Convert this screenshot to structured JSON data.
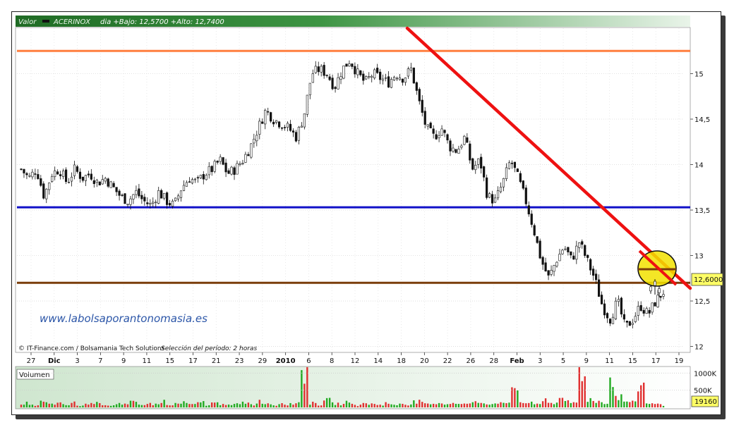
{
  "header": {
    "label": "Valor",
    "ticker": "ACERINOX",
    "quote": "dia +Bajo: 12,5700 +Alto: 12,7400"
  },
  "watermark": "www.labolsaporantonomasia.es",
  "credit": "© IT-Finance.com / Bolsamania Tech Solutions",
  "period_note": "Selección del período: 2 horas",
  "price_box": "12,6000",
  "volume_label": "Volumen",
  "volume_box": "19160",
  "colors": {
    "header_green": "#2e7d32",
    "resistance_orange": "#ff7f3f",
    "support_blue": "#1010c8",
    "support_brown": "#7a3d0a",
    "trendline_red": "#ee1111",
    "highlight_yellow": "#f2e200",
    "price_box_yellow": "#ffff66",
    "candle_green": "#22aa22",
    "candle_dark": "#111111"
  },
  "chart_data": [
    {
      "type": "candlestick",
      "title": "ACERINOX",
      "ylim": [
        11.95,
        15.5
      ],
      "grid": true,
      "y_ticks": [
        "15",
        "14,5",
        "14",
        "13,5",
        "13",
        "12,5",
        "12"
      ],
      "y_tick_values": [
        15,
        14.5,
        14,
        13.5,
        13,
        12.5,
        12
      ],
      "x_tick_labels": [
        "27",
        "Dic",
        "3",
        "7",
        "9",
        "11",
        "15",
        "17",
        "21",
        "23",
        "29",
        "2010",
        "6",
        "8",
        "12",
        "14",
        "18",
        "20",
        "22",
        "26",
        "28",
        "Feb",
        "3",
        "5",
        "9",
        "11",
        "15",
        "17",
        "19"
      ],
      "x_tick_bold": [
        "Dic",
        "2010",
        "Feb"
      ],
      "last_price": 12.6,
      "horizontal_lines": [
        {
          "label": "resistance",
          "value": 15.25,
          "color": "#ff7f3f"
        },
        {
          "label": "support",
          "value": 13.53,
          "color": "#1010c8"
        },
        {
          "label": "support",
          "value": 12.7,
          "color": "#7a3d0a"
        }
      ],
      "trendline": {
        "from": [
          0.0,
          15.5
        ],
        "to": [
          1.0,
          12.48
        ],
        "color": "#ee1111",
        "note": "x as fraction of period (start at 20 Ene)"
      },
      "price_path": [
        13.95,
        13.85,
        13.95,
        13.65,
        13.9,
        13.95,
        13.8,
        13.95,
        13.85,
        13.9,
        13.8,
        13.85,
        13.75,
        13.65,
        13.6,
        13.7,
        13.6,
        13.55,
        13.7,
        13.6,
        13.55,
        13.75,
        13.85,
        13.8,
        13.9,
        13.95,
        14.05,
        13.9,
        13.95,
        14.05,
        14.2,
        14.4,
        14.6,
        14.5,
        14.45,
        14.4,
        14.3,
        14.55,
        15.0,
        15.05,
        15.0,
        14.85,
        15.05,
        15.15,
        15.0,
        14.9,
        15.0,
        14.95,
        14.9,
        15.0,
        14.95,
        15.05,
        14.7,
        14.4,
        14.3,
        14.4,
        14.2,
        14.15,
        14.3,
        13.95,
        14.05,
        13.65,
        13.6,
        13.8,
        14.05,
        13.85,
        13.6,
        13.3,
        12.95,
        12.75,
        12.95,
        13.1,
        12.95,
        13.15,
        12.95,
        12.75,
        12.45,
        12.3,
        12.5,
        12.2,
        12.3,
        12.45,
        12.35,
        12.5,
        12.6
      ]
    },
    {
      "type": "bar",
      "title": "Volumen",
      "y_ticks": [
        "1000K",
        "500K"
      ],
      "ylim": [
        0,
        1150
      ],
      "last_value": 19160,
      "values_k": [
        80,
        120,
        60,
        150,
        90,
        110,
        70,
        130,
        50,
        100,
        160,
        90,
        60,
        120,
        80,
        140,
        70,
        100,
        90,
        180,
        60,
        110,
        130,
        80,
        150,
        70,
        120,
        100,
        60,
        90,
        140,
        80,
        170,
        110,
        60,
        130,
        90,
        150,
        1000,
        120,
        80,
        200,
        110,
        90,
        140,
        60,
        120,
        100,
        80,
        130,
        70,
        110,
        90,
        160,
        120,
        80,
        140,
        100,
        150,
        90,
        120,
        180,
        130,
        110,
        150,
        100,
        600,
        140,
        120,
        90,
        260,
        130,
        200,
        160,
        140,
        1050,
        230,
        180,
        150,
        800,
        300,
        170,
        140,
        650,
        120,
        90,
        70
      ]
    }
  ]
}
